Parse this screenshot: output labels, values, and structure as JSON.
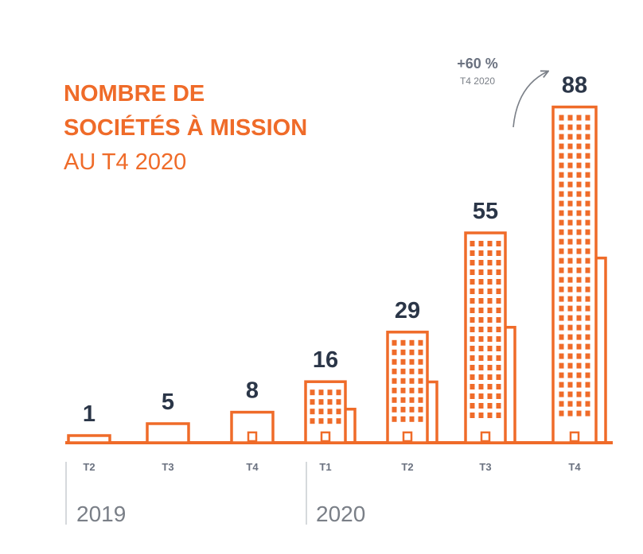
{
  "colors": {
    "accent": "#ef6b29",
    "value": "#2b3648",
    "muted": "#7a7f87"
  },
  "title": {
    "line1": "NOMBRE DE",
    "line2": "SOCIÉTÉS À MISSION",
    "line3": "AU T4 2020"
  },
  "years": [
    "2019",
    "2020"
  ],
  "annotation": {
    "growth": "+60 %",
    "period": "T4 2020"
  },
  "chart_data": {
    "type": "bar",
    "categories": [
      "T2",
      "T3",
      "T4",
      "T1",
      "T2",
      "T3",
      "T4"
    ],
    "groups": [
      {
        "label": "2019",
        "categories": [
          "T2",
          "T3",
          "T4"
        ]
      },
      {
        "label": "2020",
        "categories": [
          "T1",
          "T2",
          "T3",
          "T4"
        ]
      }
    ],
    "values": [
      1,
      5,
      8,
      16,
      29,
      55,
      88
    ],
    "value_labels": [
      "1",
      "5",
      "8",
      "16",
      "29",
      "55",
      "88"
    ]
  }
}
